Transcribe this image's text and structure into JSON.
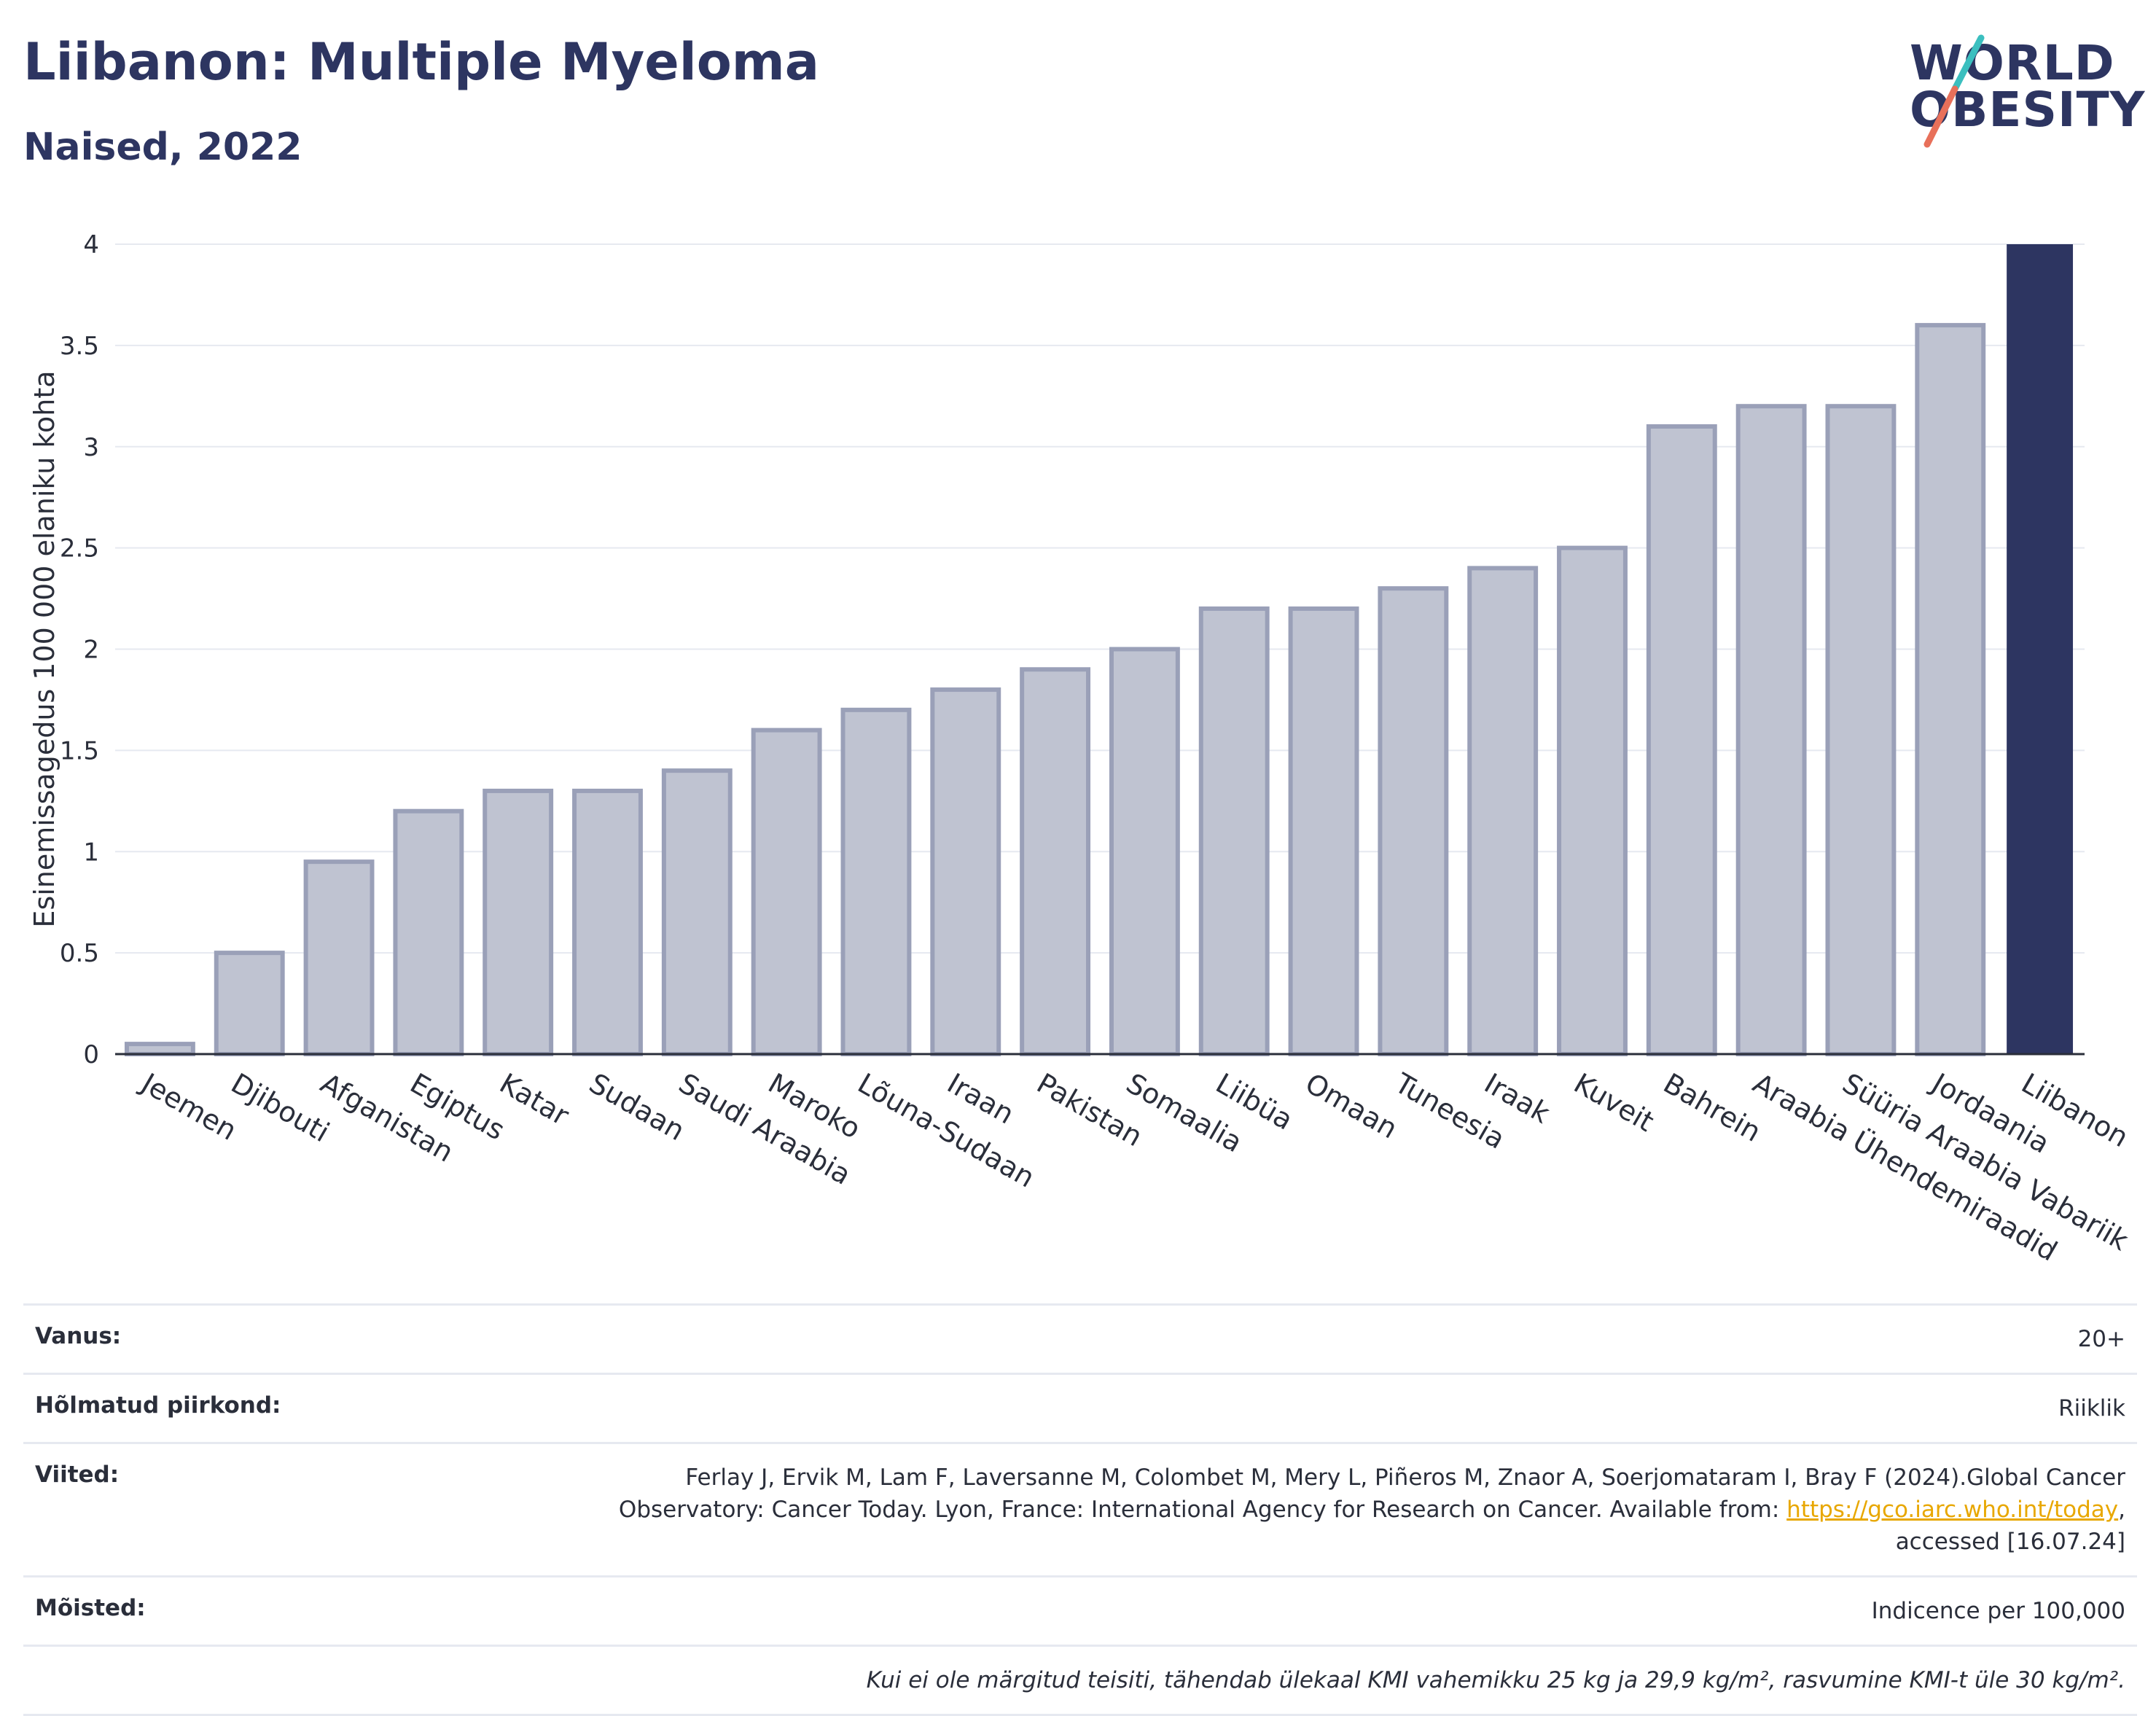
{
  "header": {
    "title": "Liibanon: Multiple Myeloma",
    "subtitle": "Naised, 2022"
  },
  "logo": {
    "line1": "WORLD",
    "line2": "OBESITY"
  },
  "chart_data": {
    "type": "bar",
    "ylabel": "Esinemissagedus 100 000 elaniku kohta",
    "xlabel": "",
    "ylim": [
      0,
      4
    ],
    "yticks": [
      0,
      0.5,
      1,
      1.5,
      2,
      2.5,
      3,
      3.5,
      4
    ],
    "ytick_labels": [
      "0",
      "0.5",
      "1",
      "1.5",
      "2",
      "2.5",
      "3",
      "3.5",
      "4"
    ],
    "grid": true,
    "categories": [
      "Jeemen",
      "Djibouti",
      "Afganistan",
      "Egiptus",
      "Katar",
      "Sudaan",
      "Saudi Araabia",
      "Maroko",
      "Lõuna-Sudaan",
      "Iraan",
      "Pakistan",
      "Somaalia",
      "Liibüa",
      "Omaan",
      "Tuneesia",
      "Iraak",
      "Kuveit",
      "Bahrein",
      "Araabia Ühendemiraadid",
      "Süüria Araabia Vabariik",
      "Jordaania",
      "Liibanon"
    ],
    "values": [
      0.05,
      0.5,
      0.95,
      1.2,
      1.3,
      1.3,
      1.4,
      1.6,
      1.7,
      1.8,
      1.9,
      2.0,
      2.2,
      2.2,
      2.3,
      2.4,
      2.5,
      3.1,
      3.2,
      3.2,
      3.6,
      4.0
    ],
    "highlight": "Liibanon",
    "colors": {
      "bar": "#bfc3d1",
      "bar_border": "#9aa0b8",
      "highlight": "#2d3561",
      "grid": "#e6e9f0",
      "axis": "#2a2e3a"
    }
  },
  "meta": {
    "vanus_label": "Vanus:",
    "vanus_value": "20+",
    "piirkond_label": "Hõlmatud piirkond:",
    "piirkond_value": "Riiklik",
    "viited_label": "Viited:",
    "viited_text1": "Ferlay J, Ervik M, Lam F, Laversanne M, Colombet M, Mery L, Piñeros M, Znaor A, Soerjomataram I, Bray F (2024).Global Cancer Observatory: Cancer Today. Lyon, France: International Agency for Research on Cancer. Available from: ",
    "viited_link": "https://gco.iarc.who.int/today",
    "viited_text2": ", accessed [16.07.24]",
    "moisted_label": "Mõisted:",
    "moisted_value": "Indicence per 100,000",
    "note": "Kui ei ole märgitud teisiti, tähendab ülekaal KMI vahemikku 25 kg ja 29,9 kg/m², rasvumine KMI-t üle 30 kg/m²."
  }
}
